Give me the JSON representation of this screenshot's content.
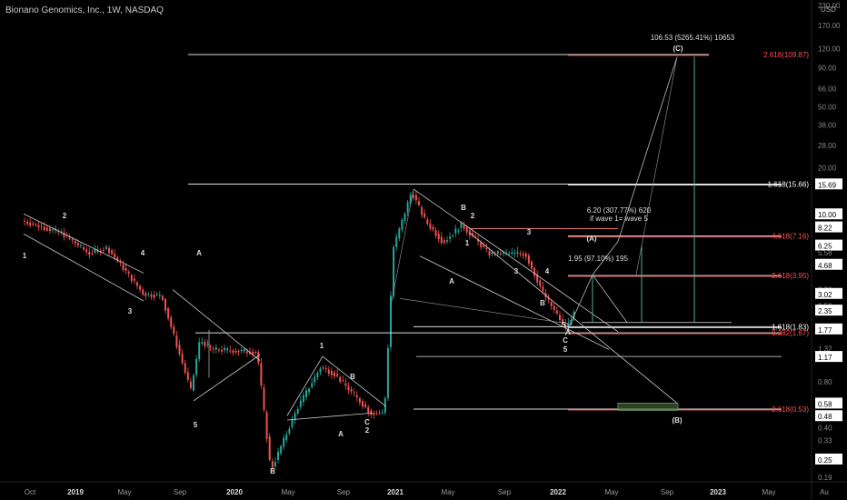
{
  "header": {
    "title": "Bionano Genomics, Inc., 1W, NASDAQ",
    "currency": "USD"
  },
  "chart_data": {
    "type": "candlestick",
    "title": "Bionano Genomics, Inc., 1W, NASDAQ",
    "y_scale": "log",
    "y_unit": "USD",
    "price_axis_ticks": [
      230.0,
      170.0,
      120.0,
      90.0,
      66.0,
      50.0,
      38.0,
      28.0,
      20.0,
      15.69,
      10.0,
      8.22,
      6.25,
      5.58,
      4.68,
      3.2,
      3.02,
      2.5,
      2.35,
      1.77,
      1.32,
      1.17,
      0.8,
      0.58,
      0.48,
      0.4,
      0.33,
      0.25,
      0.19
    ],
    "time_axis_ticks": [
      "Oct",
      "2019",
      "May",
      "Sep",
      "2020",
      "May",
      "Sep",
      "2021",
      "May",
      "Sep",
      "2022",
      "May",
      "Sep",
      "2023",
      "May",
      "Au"
    ],
    "bold_time_ticks": [
      "2019",
      "2020",
      "2021",
      "2022",
      "2023"
    ],
    "fib_levels": [
      {
        "label": "2.618(109.87)",
        "price": 109.87,
        "color": "#ff5252"
      },
      {
        "label": "1.618(15.66)",
        "price": 15.66,
        "color": "#ffffff"
      },
      {
        "label": "4.618(7.16)",
        "price": 7.16,
        "color": "#ff5252"
      },
      {
        "label": "2.618(3.95)",
        "price": 3.95,
        "color": "#ff5252"
      },
      {
        "label": "1.618(1.83)",
        "price": 1.83,
        "color": "#ffffff"
      },
      {
        "label": "0.382(1.67)",
        "price": 1.67,
        "color": "#ff5252"
      },
      {
        "label": "2.618(0.53)",
        "price": 0.53,
        "color": "#ff5252"
      }
    ],
    "projection_labels": [
      {
        "text": "106.53 (5265.41%) 10653"
      },
      {
        "text": "6.20 (307.77%) 620"
      },
      {
        "text": "if wave 1= wave 5"
      },
      {
        "text": "1.95 (97.10%) 195"
      }
    ],
    "wave_labels": [
      "1",
      "2",
      "3",
      "4",
      "5",
      "A",
      "B",
      "C",
      "(A)",
      "(B)",
      "(C)"
    ],
    "wave_label_sequence": [
      "1",
      "2",
      "3",
      "4",
      "5",
      "A",
      "B",
      "1",
      "A",
      "B",
      "C",
      "2",
      "3",
      "A",
      "B",
      "2",
      "1",
      "3",
      "4",
      "B",
      "A",
      "C",
      "5",
      "(A)",
      "(B)",
      "(C)",
      "5"
    ],
    "price_reference": {
      "start": 9.0,
      "low_2020": 0.21,
      "high_2021": 14.0,
      "low_2022": 1.77
    },
    "colors": {
      "up": "#26a69a",
      "down": "#ef5350",
      "background": "#000000",
      "text": "#c8c8c8",
      "fib_red": "#ff5252",
      "box_green": "#4a6b3a"
    }
  }
}
